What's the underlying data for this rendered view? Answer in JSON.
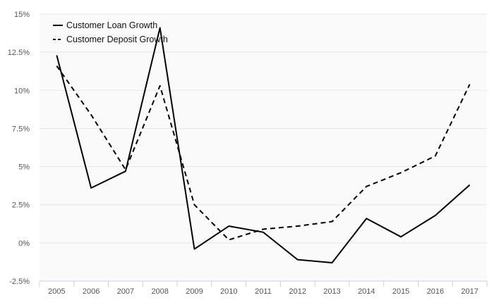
{
  "chart_data": {
    "type": "line",
    "title": "",
    "xlabel": "",
    "ylabel": "",
    "categories": [
      "2005",
      "2006",
      "2007",
      "2008",
      "2009",
      "2010",
      "2011",
      "2012",
      "2013",
      "2014",
      "2015",
      "2016",
      "2017"
    ],
    "y_ticks": [
      "15%",
      "12.5%",
      "10%",
      "7.5%",
      "5%",
      "2.5%",
      "0%",
      "-2.5%"
    ],
    "ylim": [
      -2.5,
      15
    ],
    "grid": true,
    "legend_position": "top-left",
    "series": [
      {
        "name": "Customer Loan Growth",
        "line_style": "solid",
        "color": "#000000",
        "values": [
          12.3,
          3.6,
          4.7,
          14.1,
          -0.4,
          1.1,
          0.7,
          -1.1,
          -1.3,
          1.6,
          0.4,
          1.8,
          3.8
        ]
      },
      {
        "name": "Customer Deposit Growth",
        "line_style": "dashed",
        "color": "#000000",
        "values": [
          11.6,
          8.4,
          4.8,
          10.3,
          2.5,
          0.2,
          0.9,
          1.1,
          1.4,
          3.7,
          4.6,
          5.7,
          10.4
        ]
      }
    ]
  }
}
